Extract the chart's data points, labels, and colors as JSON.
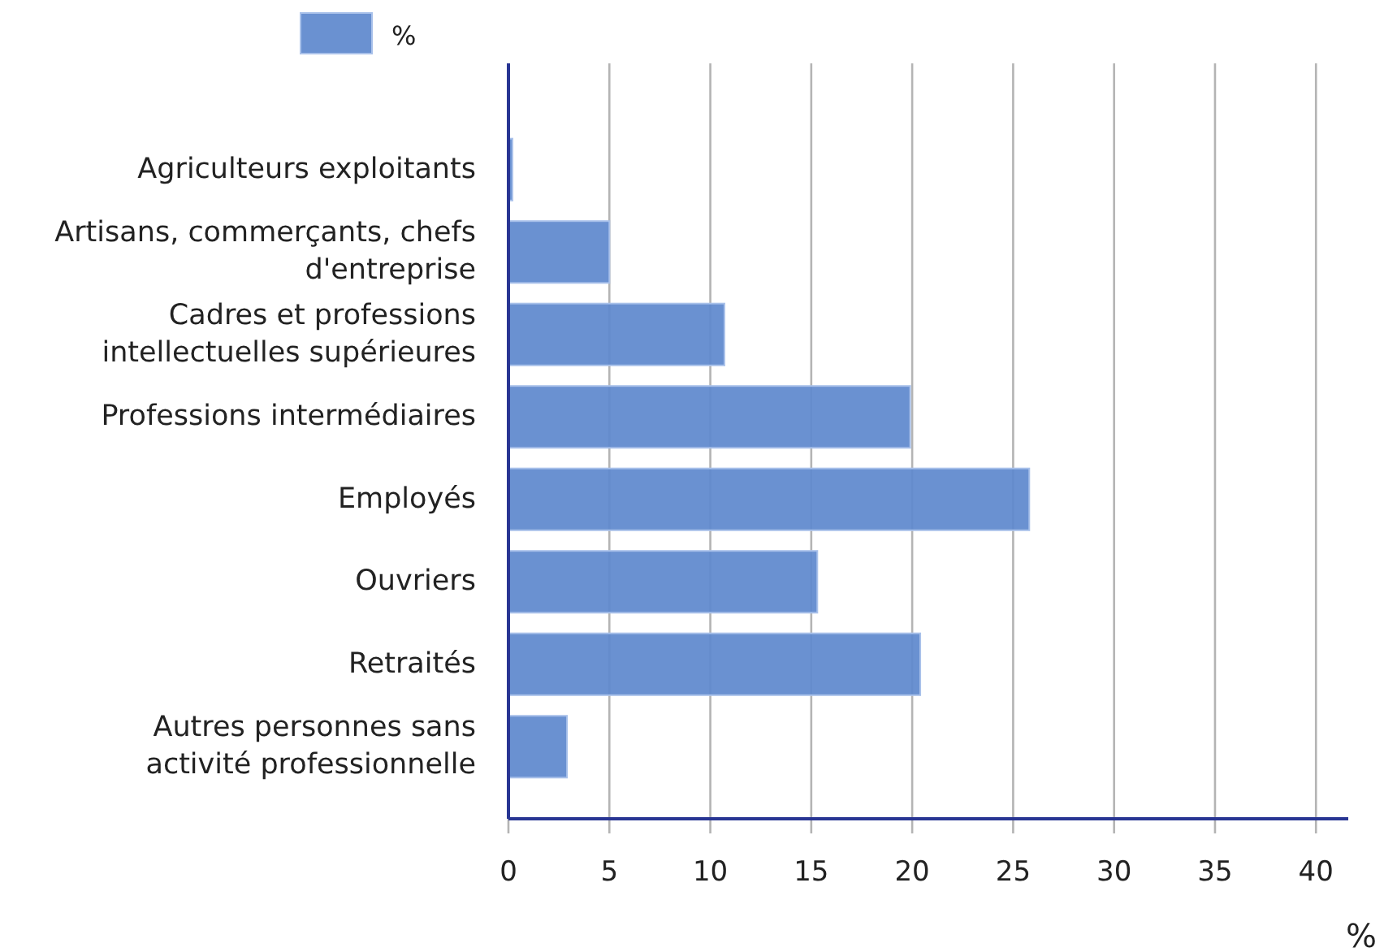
{
  "chart_data": {
    "type": "bar",
    "orientation": "horizontal",
    "categories": [
      "Agriculteurs exploitants",
      "Artisans, commerçants, chefs d'entreprise",
      "Cadres et professions intellectuelles supérieures",
      "Professions intermédiaires",
      "Employés",
      "Ouvriers",
      "Retraités",
      "Autres personnes sans activité professionnelle"
    ],
    "series": [
      {
        "name": "%",
        "color": "#5f89cd",
        "values": [
          0.2,
          5.0,
          10.7,
          19.9,
          25.8,
          15.3,
          20.4,
          2.9
        ]
      }
    ],
    "xlabel": "%",
    "xlim": [
      0,
      41.6
    ],
    "xticks": [
      0,
      5,
      10,
      15,
      20,
      25,
      30,
      35,
      40
    ],
    "grid": "x",
    "legend": "top left"
  }
}
